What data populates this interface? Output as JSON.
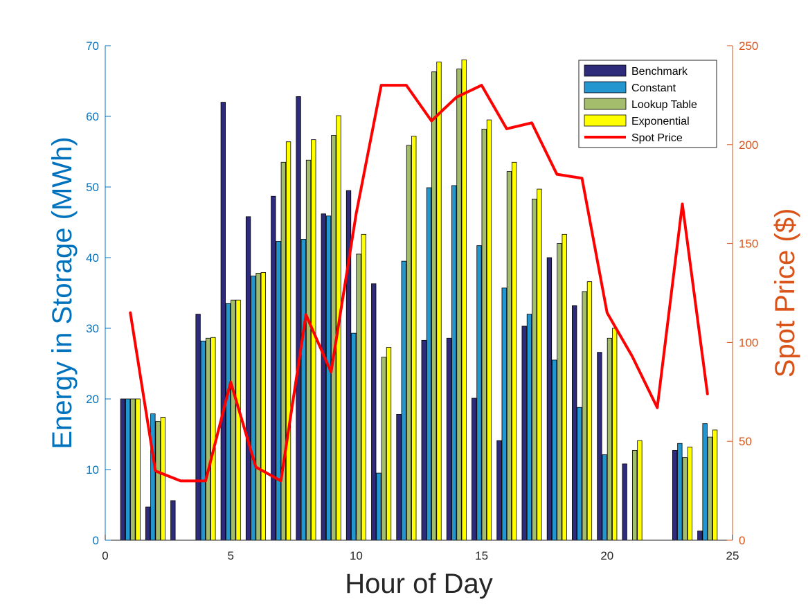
{
  "chart_data": {
    "type": "bar",
    "title": "",
    "xlabel": "Hour of Day",
    "ylabel": "Energy in Storage (MWh)",
    "y2label": "Spot Price ($)",
    "xlim": [
      0,
      25
    ],
    "ylim": [
      0,
      70
    ],
    "y2lim": [
      0,
      250
    ],
    "x_ticks": [
      0,
      5,
      10,
      15,
      20,
      25
    ],
    "y_ticks": [
      0,
      10,
      20,
      30,
      40,
      50,
      60,
      70
    ],
    "y2_ticks": [
      0,
      50,
      100,
      150,
      200,
      250
    ],
    "legend_position": "top-right",
    "colors": {
      "left_axis": "#0072BD",
      "right_axis": "#D95319",
      "spot_line": "#FF0000"
    },
    "x": [
      1,
      2,
      3,
      4,
      5,
      6,
      7,
      8,
      9,
      10,
      11,
      12,
      13,
      14,
      15,
      16,
      17,
      18,
      19,
      20,
      21,
      22,
      23,
      24
    ],
    "series": [
      {
        "name": "Benchmark",
        "color": "#2E2B7A",
        "values": [
          20,
          4.7,
          5.6,
          32,
          62,
          45.8,
          48.7,
          62.8,
          46.2,
          49.5,
          36.3,
          17.8,
          28.3,
          28.6,
          20.1,
          14.1,
          30.3,
          40.0,
          33.2,
          26.6,
          10.8,
          0,
          12.7,
          1.3
        ]
      },
      {
        "name": "Constant",
        "color": "#2396CF",
        "values": [
          20,
          17.9,
          0,
          28.2,
          33.5,
          37.4,
          42.3,
          42.6,
          45.9,
          29.3,
          9.5,
          39.5,
          49.9,
          50.2,
          41.7,
          35.7,
          32.0,
          25.5,
          18.8,
          12.1,
          0,
          0,
          13.7,
          16.5
        ]
      },
      {
        "name": "Lookup Table",
        "color": "#A3BD6D",
        "values": [
          20,
          16.8,
          0,
          28.6,
          34.0,
          37.8,
          53.5,
          53.8,
          57.3,
          40.5,
          25.9,
          55.9,
          66.3,
          66.7,
          58.2,
          52.2,
          48.3,
          42.0,
          35.2,
          28.6,
          12.7,
          0,
          11.7,
          14.6
        ]
      },
      {
        "name": "Exponential",
        "color": "#FFFF00",
        "values": [
          20,
          17.4,
          0,
          28.7,
          34.0,
          37.9,
          56.4,
          56.7,
          60.1,
          43.3,
          27.3,
          57.2,
          67.7,
          68.0,
          59.5,
          53.5,
          49.7,
          43.3,
          36.6,
          30.0,
          14.1,
          0,
          13.2,
          15.6
        ]
      }
    ],
    "line": {
      "name": "Spot Price",
      "values": [
        115,
        35,
        30,
        30,
        80,
        37,
        30,
        114,
        85,
        165,
        230,
        230,
        212,
        224,
        230,
        208,
        211,
        185,
        183,
        115,
        93,
        67,
        170,
        74
      ]
    }
  }
}
